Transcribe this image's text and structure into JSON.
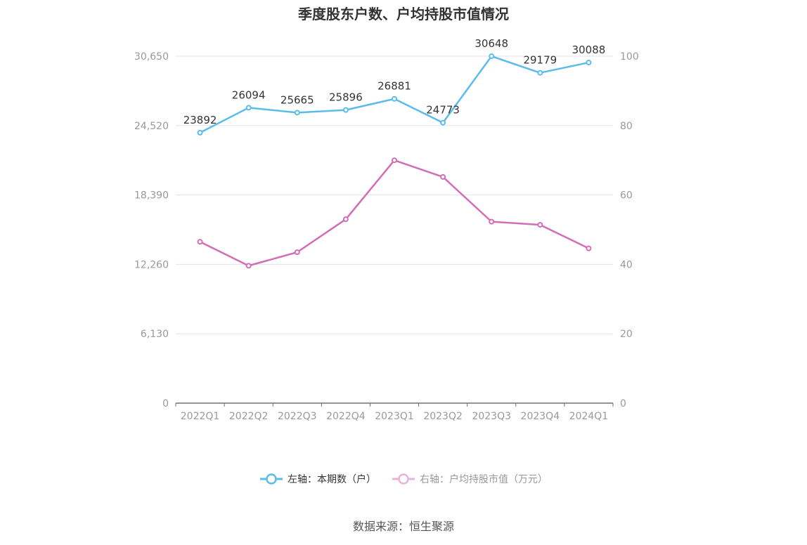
{
  "chart_data": {
    "type": "line",
    "title": "季度股东户数、户均持股市值情况",
    "categories": [
      "2022Q1",
      "2022Q2",
      "2022Q3",
      "2022Q4",
      "2023Q1",
      "2023Q2",
      "2023Q3",
      "2023Q4",
      "2024Q1"
    ],
    "left_axis": {
      "ylim": [
        0,
        30650
      ],
      "ticks": [
        "0",
        "6,130",
        "12,260",
        "18,390",
        "24,520",
        "30,650"
      ]
    },
    "right_axis": {
      "ylim": [
        0,
        100
      ],
      "ticks": [
        "0",
        "20",
        "40",
        "60",
        "80",
        "100"
      ]
    },
    "grid": true,
    "legend_position": "bottom",
    "series": [
      {
        "name": "左轴：本期数（户）",
        "axis": "left",
        "color": "#5bbcec",
        "values": [
          23892,
          26094,
          25665,
          25896,
          26881,
          24773,
          30648,
          29179,
          30088
        ],
        "labels": [
          "23892",
          "26094",
          "25665",
          "25896",
          "26881",
          "24773",
          "30648",
          "29179",
          "30088"
        ]
      },
      {
        "name": "右轴：户均持股市值（万元）",
        "axis": "right",
        "color": "#d36db5",
        "values": [
          46.5,
          39.6,
          43.5,
          53.0,
          70.0,
          65.2,
          52.3,
          51.4,
          44.6
        ]
      }
    ]
  },
  "source_text": "数据来源：恒生聚源"
}
